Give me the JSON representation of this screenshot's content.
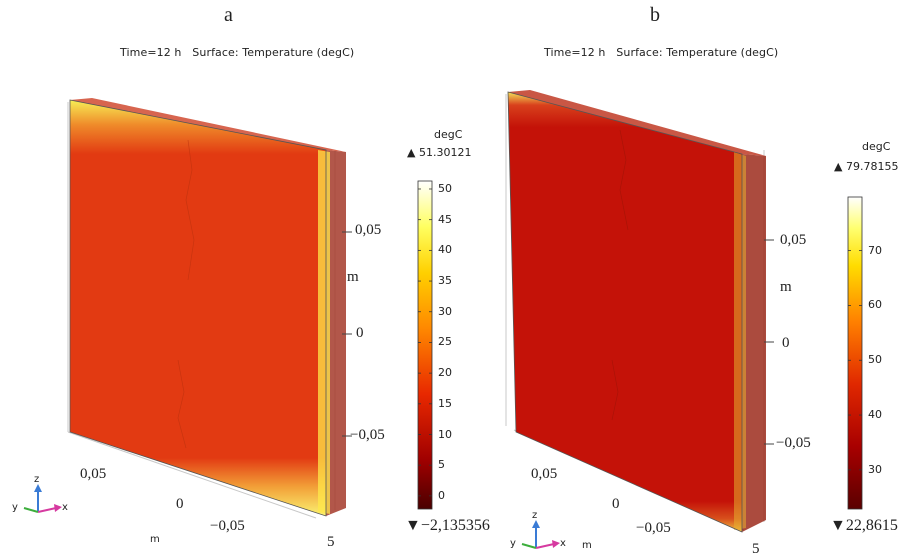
{
  "panels": [
    {
      "letter": "a",
      "title": "Time=12 h   Surface: Temperature (degC)",
      "colorbar": {
        "unit": "degC",
        "max_label": "▲ 51.30121",
        "min_label": "▼−2,135356",
        "ticks": [
          "50",
          "45",
          "40",
          "35",
          "30",
          "25",
          "20",
          "15",
          "10",
          "5",
          "0"
        ],
        "range": [
          -2.135356,
          51.30121
        ]
      },
      "axes": {
        "right_ticks": [
          "0,05",
          "0",
          "−0,05"
        ],
        "right_unit": "m",
        "bottom_ticks": [
          "0,05",
          "0",
          "−0,05"
        ],
        "bottom_unit": "m",
        "corner_tick": "5",
        "triad": {
          "z": "z",
          "y": "y",
          "x": "x"
        }
      }
    },
    {
      "letter": "b",
      "title": "Time=12 h   Surface: Temperature (degC)",
      "colorbar": {
        "unit": "degC",
        "max_label": "▲ 79.78155",
        "min_label": "▼22,8615",
        "ticks": [
          "70",
          "60",
          "50",
          "40",
          "30"
        ],
        "range": [
          22.8615,
          79.78155
        ]
      },
      "axes": {
        "right_ticks": [
          "0,05",
          "0",
          "−0,05"
        ],
        "right_unit": "m",
        "bottom_ticks": [
          "0,05",
          "0",
          "−0,05"
        ],
        "bottom_unit": "m",
        "corner_tick": "5",
        "triad": {
          "z": "z",
          "y": "y",
          "x": "x"
        }
      }
    }
  ],
  "colors": {
    "plate_a_face": "#e23a12",
    "plate_a_edge": "#f4e83a",
    "plate_b_face": "#c41208",
    "plate_b_edge": "#f2dc40",
    "side_tint": "#9c2b1c",
    "colormap": [
      "#ffffff",
      "#ffffa0",
      "#ffee30",
      "#ffb000",
      "#ff5a00",
      "#d81a00",
      "#8a0000",
      "#4a0000"
    ],
    "axis_x": "#d63aa0",
    "axis_y": "#3cae3c",
    "axis_z": "#3a7bd5"
  }
}
